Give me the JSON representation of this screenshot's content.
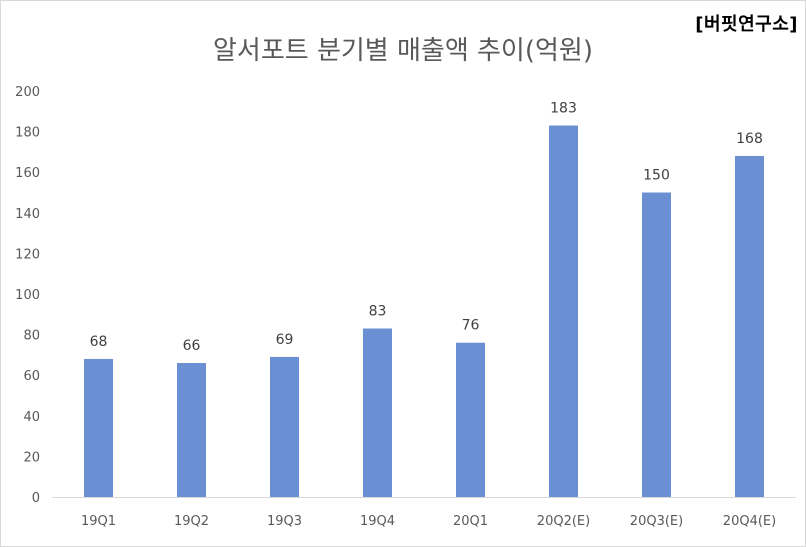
{
  "brand": "[버핏연구소]",
  "chart_data": {
    "type": "bar",
    "title": "알서포트 분기별 매출액 추이(억원)",
    "categories": [
      "19Q1",
      "19Q2",
      "19Q3",
      "19Q4",
      "20Q1",
      "20Q2(E)",
      "20Q3(E)",
      "20Q4(E)"
    ],
    "series": [
      {
        "values": [
          68,
          66,
          69,
          83,
          76,
          183,
          150,
          168
        ]
      }
    ],
    "yticks": [
      "0",
      "20",
      "40",
      "60",
      "80",
      "100",
      "120",
      "140",
      "160",
      "180",
      "200"
    ],
    "ylim": [
      0,
      200
    ],
    "grid": false,
    "bar_color": "#6a8fd3",
    "axis_color": "#d9d9d9"
  }
}
